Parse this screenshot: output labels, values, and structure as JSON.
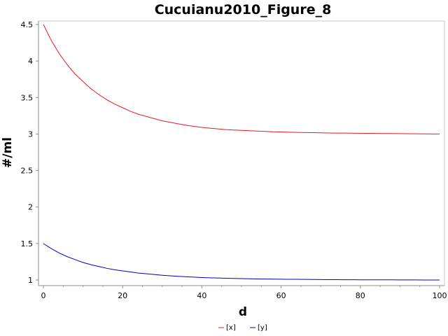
{
  "chart_data": {
    "type": "line",
    "title": "Cucuianu2010_Figure_8",
    "xlabel": "d",
    "ylabel": "#/ml",
    "xlim": [
      0,
      100
    ],
    "ylim": [
      1,
      4.5
    ],
    "xticks": [
      0,
      20,
      40,
      60,
      80,
      100
    ],
    "yticks": [
      1,
      1.5,
      2,
      2.5,
      3,
      3.5,
      4,
      4.5
    ],
    "grid": false,
    "legend_position": "bottom-center",
    "series": [
      {
        "name": "[x]",
        "color": "#e41a1c",
        "x": [
          0,
          2,
          4,
          6,
          8,
          10,
          12,
          14,
          16,
          18,
          20,
          22,
          24,
          26,
          28,
          30,
          32,
          34,
          36,
          38,
          40,
          42,
          44,
          46,
          48,
          50,
          52,
          54,
          56,
          58,
          60,
          62,
          64,
          66,
          68,
          70,
          72,
          74,
          76,
          78,
          80,
          82,
          84,
          86,
          88,
          90,
          92,
          94,
          96,
          98,
          100
        ],
        "y": [
          4.5,
          4.28,
          4.1,
          3.95,
          3.82,
          3.72,
          3.62,
          3.54,
          3.47,
          3.41,
          3.36,
          3.31,
          3.27,
          3.24,
          3.21,
          3.18,
          3.16,
          3.14,
          3.12,
          3.105,
          3.09,
          3.08,
          3.07,
          3.06,
          3.055,
          3.05,
          3.045,
          3.04,
          3.035,
          3.03,
          3.028,
          3.025,
          3.022,
          3.02,
          3.018,
          3.016,
          3.014,
          3.013,
          3.012,
          3.011,
          3.01,
          3.009,
          3.008,
          3.007,
          3.006,
          3.005,
          3.004,
          3.003,
          3.002,
          3.001,
          3.0
        ]
      },
      {
        "name": "[y]",
        "color": "#0000cc",
        "x": [
          0,
          2,
          4,
          6,
          8,
          10,
          12,
          14,
          16,
          18,
          20,
          22,
          24,
          26,
          28,
          30,
          32,
          34,
          36,
          38,
          40,
          42,
          44,
          46,
          48,
          50,
          52,
          54,
          56,
          58,
          60,
          62,
          64,
          66,
          68,
          70,
          72,
          74,
          76,
          78,
          80,
          82,
          84,
          86,
          88,
          90,
          92,
          94,
          96,
          98,
          100
        ],
        "y": [
          1.5,
          1.43,
          1.37,
          1.32,
          1.28,
          1.24,
          1.21,
          1.185,
          1.16,
          1.14,
          1.125,
          1.11,
          1.095,
          1.085,
          1.075,
          1.065,
          1.057,
          1.05,
          1.044,
          1.039,
          1.034,
          1.03,
          1.027,
          1.024,
          1.021,
          1.019,
          1.017,
          1.015,
          1.013,
          1.012,
          1.011,
          1.01,
          1.009,
          1.008,
          1.007,
          1.006,
          1.005,
          1.005,
          1.004,
          1.004,
          1.003,
          1.003,
          1.002,
          1.002,
          1.002,
          1.001,
          1.001,
          1.001,
          1.0,
          1.0,
          1.0
        ]
      }
    ]
  }
}
